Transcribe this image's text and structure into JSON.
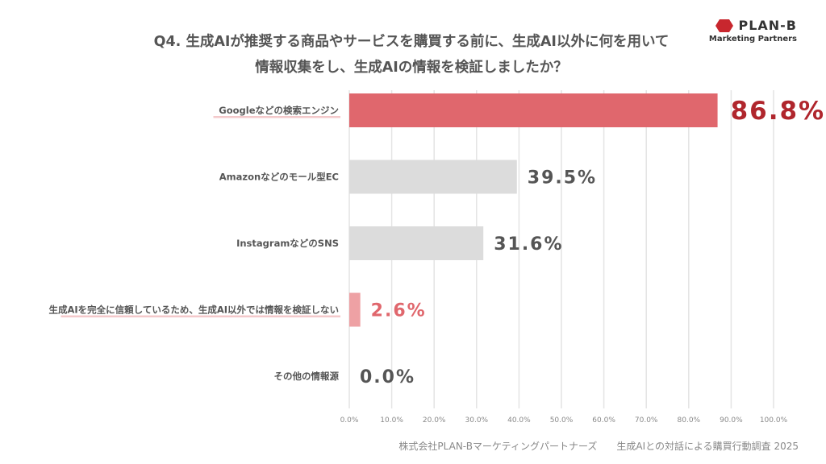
{
  "title": {
    "line1": "Q4. 生成AIが推奨する商品やサービスを購買する前に、生成AI以外に何を用いて",
    "line2": "情報収集をし、生成AIの情報を検証しましたか？"
  },
  "logo": {
    "name": "PLAN-B",
    "subtitle": "Marketing Partners",
    "color": "#c8272e"
  },
  "footer": {
    "company": "株式会社PLAN-Bマーケティングパートナーズ",
    "survey": "生成AIとの対話による購買行動調査 2025"
  },
  "chart_data": {
    "type": "bar",
    "orientation": "horizontal",
    "title": "",
    "xlabel": "",
    "ylabel": "",
    "categories": [
      "Googleなどの検索エンジン",
      "Amazonなどのモール型EC",
      "InstagramなどのSNS",
      "生成AIを完全に信頼しているため、生成AI以外では情報を検証しない",
      "その他の情報源"
    ],
    "values": [
      86.8,
      39.5,
      31.6,
      2.6,
      0.0
    ],
    "value_labels": [
      "86.8%",
      "39.5%",
      "31.6%",
      "2.6%",
      "0.0%"
    ],
    "xlim": [
      0,
      100
    ],
    "x_ticks": [
      "0.0%",
      "10.0%",
      "20.0%",
      "30.0%",
      "40.0%",
      "50.0%",
      "60.0%",
      "70.0%",
      "80.0%",
      "90.0%",
      "100.0%"
    ],
    "grid": "vertical",
    "bar_colors": [
      "#e0676d",
      "#dcdcdc",
      "#dcdcdc",
      "#eea1a4",
      "#dcdcdc"
    ],
    "label_colors": [
      "#b0262d",
      "#555555",
      "#555555",
      "#e0676d",
      "#555555"
    ],
    "highlighted_categories": [
      0,
      3
    ],
    "highlight_underline_color": "#f4c9cb"
  }
}
